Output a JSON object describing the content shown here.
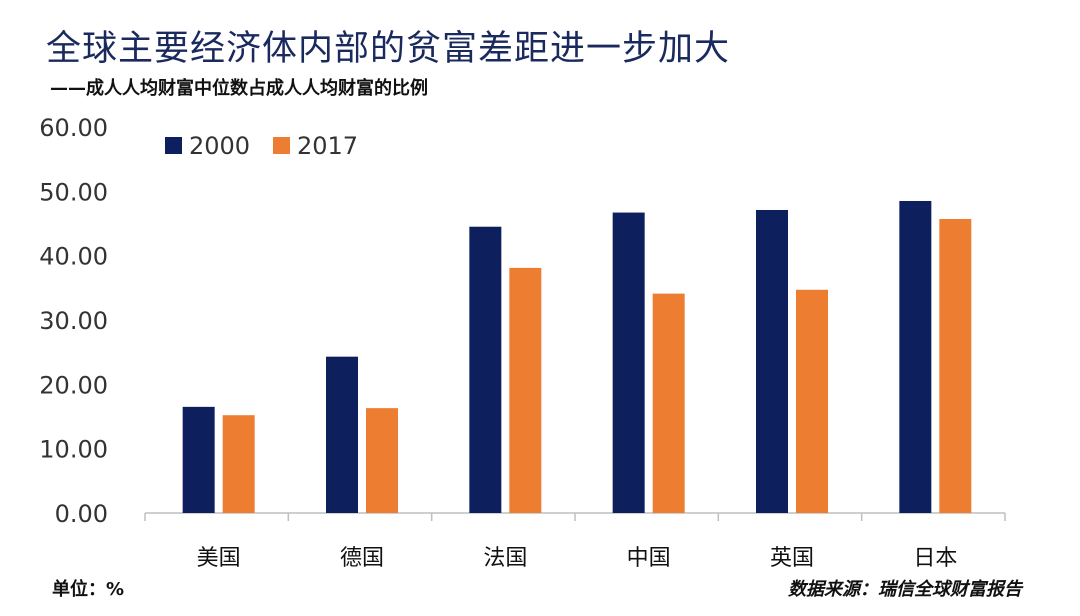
{
  "title": "全球主要经济体内部的贫富差距进一步加大",
  "subtitle": "——成人人均财富中位数占成人人均财富的比例",
  "unit": "单位：%",
  "source": "数据来源：瑞信全球财富报告",
  "chart_data": {
    "type": "bar",
    "categories": [
      "美国",
      "德国",
      "法国",
      "中国",
      "英国",
      "日本"
    ],
    "series": [
      {
        "name": "2000",
        "color": "#0d1f5c",
        "values": [
          16.5,
          24.3,
          44.5,
          46.7,
          47.1,
          48.5
        ]
      },
      {
        "name": "2017",
        "color": "#ed7d31",
        "values": [
          15.2,
          16.3,
          38.1,
          34.1,
          34.7,
          45.7
        ]
      }
    ],
    "ylim": [
      0,
      60
    ],
    "yticks": [
      "0.00",
      "10.00",
      "20.00",
      "30.00",
      "40.00",
      "50.00",
      "60.00"
    ],
    "grid": false,
    "legend": "top-left"
  }
}
